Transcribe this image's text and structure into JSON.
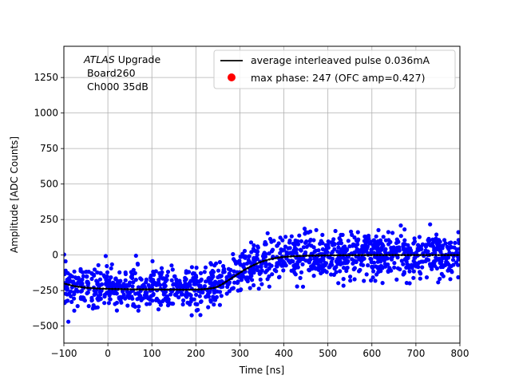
{
  "chart_data": {
    "type": "scatter",
    "title": "",
    "xlabel": "Time [ns]",
    "ylabel": "Amplitude [ADC Counts]",
    "xlim": [
      -100,
      800
    ],
    "ylim": [
      -620,
      1470
    ],
    "xticks": [
      -100,
      0,
      100,
      200,
      300,
      400,
      500,
      600,
      700,
      800
    ],
    "yticks": [
      -500,
      -250,
      0,
      250,
      500,
      750,
      1000,
      1250
    ],
    "grid": true,
    "annotation": {
      "atlas": "ATLAS",
      "line1_rest": " Upgrade",
      "line2": " Board260",
      "line3": " Ch000 35dB"
    },
    "legend": {
      "placement": "top-right",
      "entries": [
        {
          "label": "average interleaved pulse 0.036mA",
          "marker": "line",
          "color": "#000000"
        },
        {
          "label": "max phase: 247 (OFC amp=0.427)",
          "marker": "dot",
          "color": "#ff0000"
        }
      ]
    },
    "series": [
      {
        "type": "scatter",
        "color": "#0000ff",
        "spread": 75,
        "description_points_follow_average": true
      },
      {
        "type": "line",
        "color": "#000000",
        "x": [
          -100,
          -75,
          -50,
          -25,
          0,
          25,
          50,
          75,
          100,
          125,
          150,
          175,
          200,
          220,
          240,
          250,
          260,
          270,
          280,
          290,
          300,
          310,
          320,
          330,
          340,
          350,
          360,
          370,
          380,
          390,
          400,
          425,
          450,
          475,
          500,
          550,
          600,
          650,
          700,
          750,
          800
        ],
        "y": [
          -200,
          -220,
          -230,
          -235,
          -238,
          -240,
          -241,
          -242,
          -242,
          -243,
          -243,
          -244,
          -243,
          -240,
          -232,
          -222,
          -205,
          -185,
          -165,
          -145,
          -125,
          -105,
          -88,
          -72,
          -58,
          -46,
          -36,
          -28,
          -22,
          -17,
          -13,
          -8,
          -5,
          -3,
          -2,
          -1,
          0,
          0,
          0,
          0,
          0
        ]
      }
    ]
  }
}
